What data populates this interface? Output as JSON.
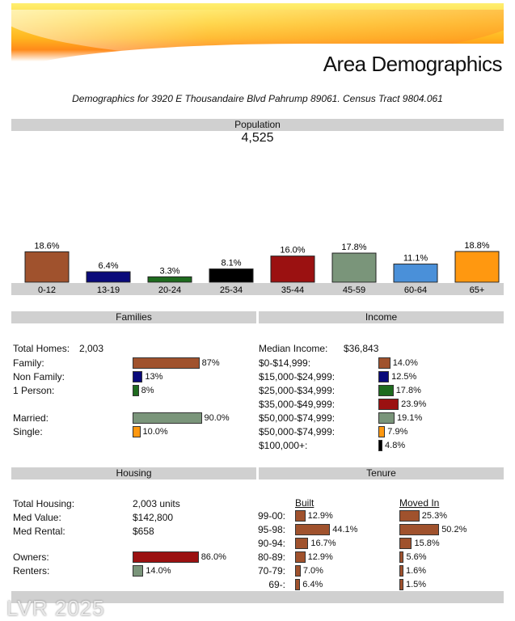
{
  "header": {
    "title": "Area Demographics",
    "subtitle": "Demographics for 3920 E Thousandaire Blvd Pahrump 89061. Census Tract 9804.061"
  },
  "population": {
    "heading": "Population",
    "total": "4,525"
  },
  "chart_data": [
    {
      "type": "bar",
      "title": "Population",
      "categories": [
        "0-12",
        "13-19",
        "20-24",
        "25-34",
        "35-44",
        "45-59",
        "60-64",
        "65+"
      ],
      "values": [
        18.6,
        6.4,
        3.3,
        8.1,
        16.0,
        17.8,
        11.1,
        18.8
      ],
      "labels": [
        "18.6%",
        "6.4%",
        "3.3%",
        "8.1%",
        "16.0%",
        "17.8%",
        "11.1%",
        "18.8%"
      ],
      "colors": [
        "#a0522d",
        "#0a0a7a",
        "#1e6b1e",
        "#000000",
        "#9b1111",
        "#7a957a",
        "#4a90d9",
        "#ff9810"
      ]
    }
  ],
  "families": {
    "heading": "Families",
    "total_homes_label": "Total Homes:",
    "total_homes_value": "2,003",
    "rows": [
      {
        "label": "Family:",
        "value": 87,
        "text": "87%",
        "color": "#a0522d"
      },
      {
        "label": "Non Family:",
        "value": 13,
        "text": "13%",
        "color": "#0a0a7a"
      },
      {
        "label": "1 Person:",
        "value": 8,
        "text": "8%",
        "color": "#1e6b1e"
      }
    ],
    "marital": [
      {
        "label": "Married:",
        "value": 90.0,
        "text": "90.0%",
        "color": "#7a957a"
      },
      {
        "label": "Single:",
        "value": 10.0,
        "text": "10.0%",
        "color": "#ff9810"
      }
    ]
  },
  "income": {
    "heading": "Income",
    "median_label": "Median Income:",
    "median_value": "$36,843",
    "rows": [
      {
        "label": "$0-$14,999:",
        "value": 14.0,
        "text": "14.0%",
        "color": "#a0522d"
      },
      {
        "label": "$15,000-$24,999:",
        "value": 12.5,
        "text": "12.5%",
        "color": "#0a0a7a"
      },
      {
        "label": "$25,000-$34,999:",
        "value": 17.8,
        "text": "17.8%",
        "color": "#1e6b1e"
      },
      {
        "label": "$35,000-$49,999:",
        "value": 23.9,
        "text": "23.9%",
        "color": "#9b1111"
      },
      {
        "label": "$50,000-$74,999:",
        "value": 19.1,
        "text": "19.1%",
        "color": "#7a957a"
      },
      {
        "label": "$50,000-$74,999:",
        "value": 7.9,
        "text": "7.9%",
        "color": "#ff9810"
      },
      {
        "label": "$100,000+:",
        "value": 4.8,
        "text": "4.8%",
        "color": "#000000"
      }
    ]
  },
  "housing": {
    "heading": "Housing",
    "rows": [
      {
        "label": "Total Housing:",
        "value": "2,003 units"
      },
      {
        "label": "Med Value:",
        "value": "$142,800"
      },
      {
        "label": "Med Rental:",
        "value": "$658"
      }
    ],
    "tenure_split": [
      {
        "label": "Owners:",
        "value": 86.0,
        "text": "86.0%",
        "color": "#9b1111"
      },
      {
        "label": "Renters:",
        "value": 14.0,
        "text": "14.0%",
        "color": "#7a957a"
      }
    ]
  },
  "tenure": {
    "heading": "Tenure",
    "built_heading": "Built",
    "moved_heading": "Moved In",
    "rows": [
      {
        "label": "99-00:",
        "built": 12.9,
        "built_text": "12.9%",
        "moved": 25.3,
        "moved_text": "25.3%"
      },
      {
        "label": "95-98:",
        "built": 44.1,
        "built_text": "44.1%",
        "moved": 50.2,
        "moved_text": "50.2%"
      },
      {
        "label": "90-94:",
        "built": 16.7,
        "built_text": "16.7%",
        "moved": 15.8,
        "moved_text": "15.8%"
      },
      {
        "label": "80-89:",
        "built": 12.9,
        "built_text": "12.9%",
        "moved": 5.6,
        "moved_text": "5.6%"
      },
      {
        "label": "70-79:",
        "built": 7.0,
        "built_text": "7.0%",
        "moved": 1.6,
        "moved_text": "1.6%"
      },
      {
        "label": "69-:",
        "built": 6.4,
        "built_text": "6.4%",
        "moved": 1.5,
        "moved_text": "1.5%"
      }
    ],
    "color": "#a0522d"
  },
  "watermark": "LVR 2025"
}
